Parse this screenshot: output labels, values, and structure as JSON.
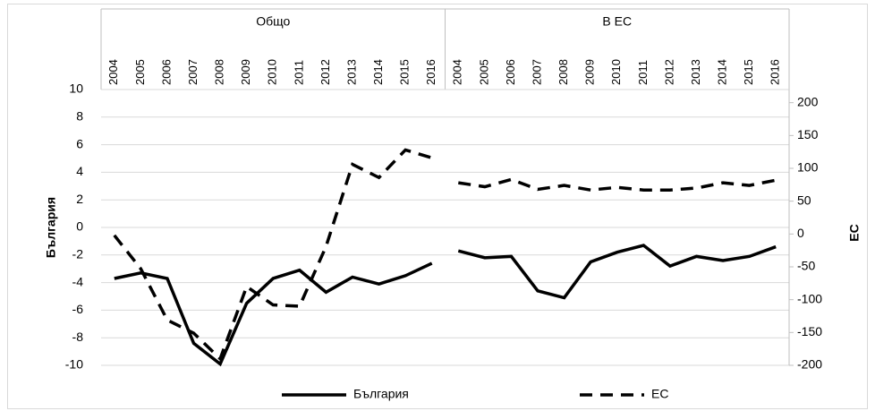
{
  "chart_data": {
    "type": "line",
    "y_label": "България",
    "y2_label": "ЕС",
    "groups": [
      {
        "label": "Общо",
        "categories": [
          "2004",
          "2005",
          "2006",
          "2007",
          "2008",
          "2009",
          "2010",
          "2011",
          "2012",
          "2013",
          "2014",
          "2015",
          "2016"
        ]
      },
      {
        "label": "В ЕС",
        "categories": [
          "2004",
          "2005",
          "2006",
          "2007",
          "2008",
          "2009",
          "2010",
          "2011",
          "2012",
          "2013",
          "2014",
          "2015",
          "2016"
        ]
      }
    ],
    "series": [
      {
        "name": "България",
        "color": "#000000",
        "dashed": false,
        "axis": "y",
        "values": [
          [
            -3.7,
            -3.3,
            -3.7,
            -8.4,
            -9.9,
            -5.5,
            -3.7,
            -3.1,
            -4.7,
            -3.6,
            -4.1,
            -3.5,
            -2.6
          ],
          [
            -1.7,
            -2.2,
            -2.1,
            -4.6,
            -5.1,
            -2.5,
            -1.8,
            -1.3,
            -2.8,
            -2.1,
            -2.4,
            -2.1,
            -1.4
          ]
        ]
      },
      {
        "name": "ЕС",
        "color": "#000000",
        "dashed": true,
        "axis": "y2",
        "values": [
          [
            -2,
            -53,
            -131,
            -151,
            -190,
            -80,
            -108,
            -110,
            -19,
            106,
            86,
            128,
            116
          ],
          [
            78,
            72,
            83,
            68,
            74,
            67,
            71,
            67,
            67,
            70,
            78,
            74,
            82
          ]
        ]
      }
    ],
    "ylim": [
      -10,
      10
    ],
    "yticks": [
      -10,
      -8,
      -6,
      -4,
      -2,
      0,
      2,
      4,
      6,
      8,
      10
    ],
    "y2lim": [
      -200,
      220
    ],
    "y2ticks": [
      -200,
      -150,
      -100,
      -50,
      0,
      50,
      100,
      150,
      200
    ],
    "grid": true,
    "legend": "bottom"
  }
}
